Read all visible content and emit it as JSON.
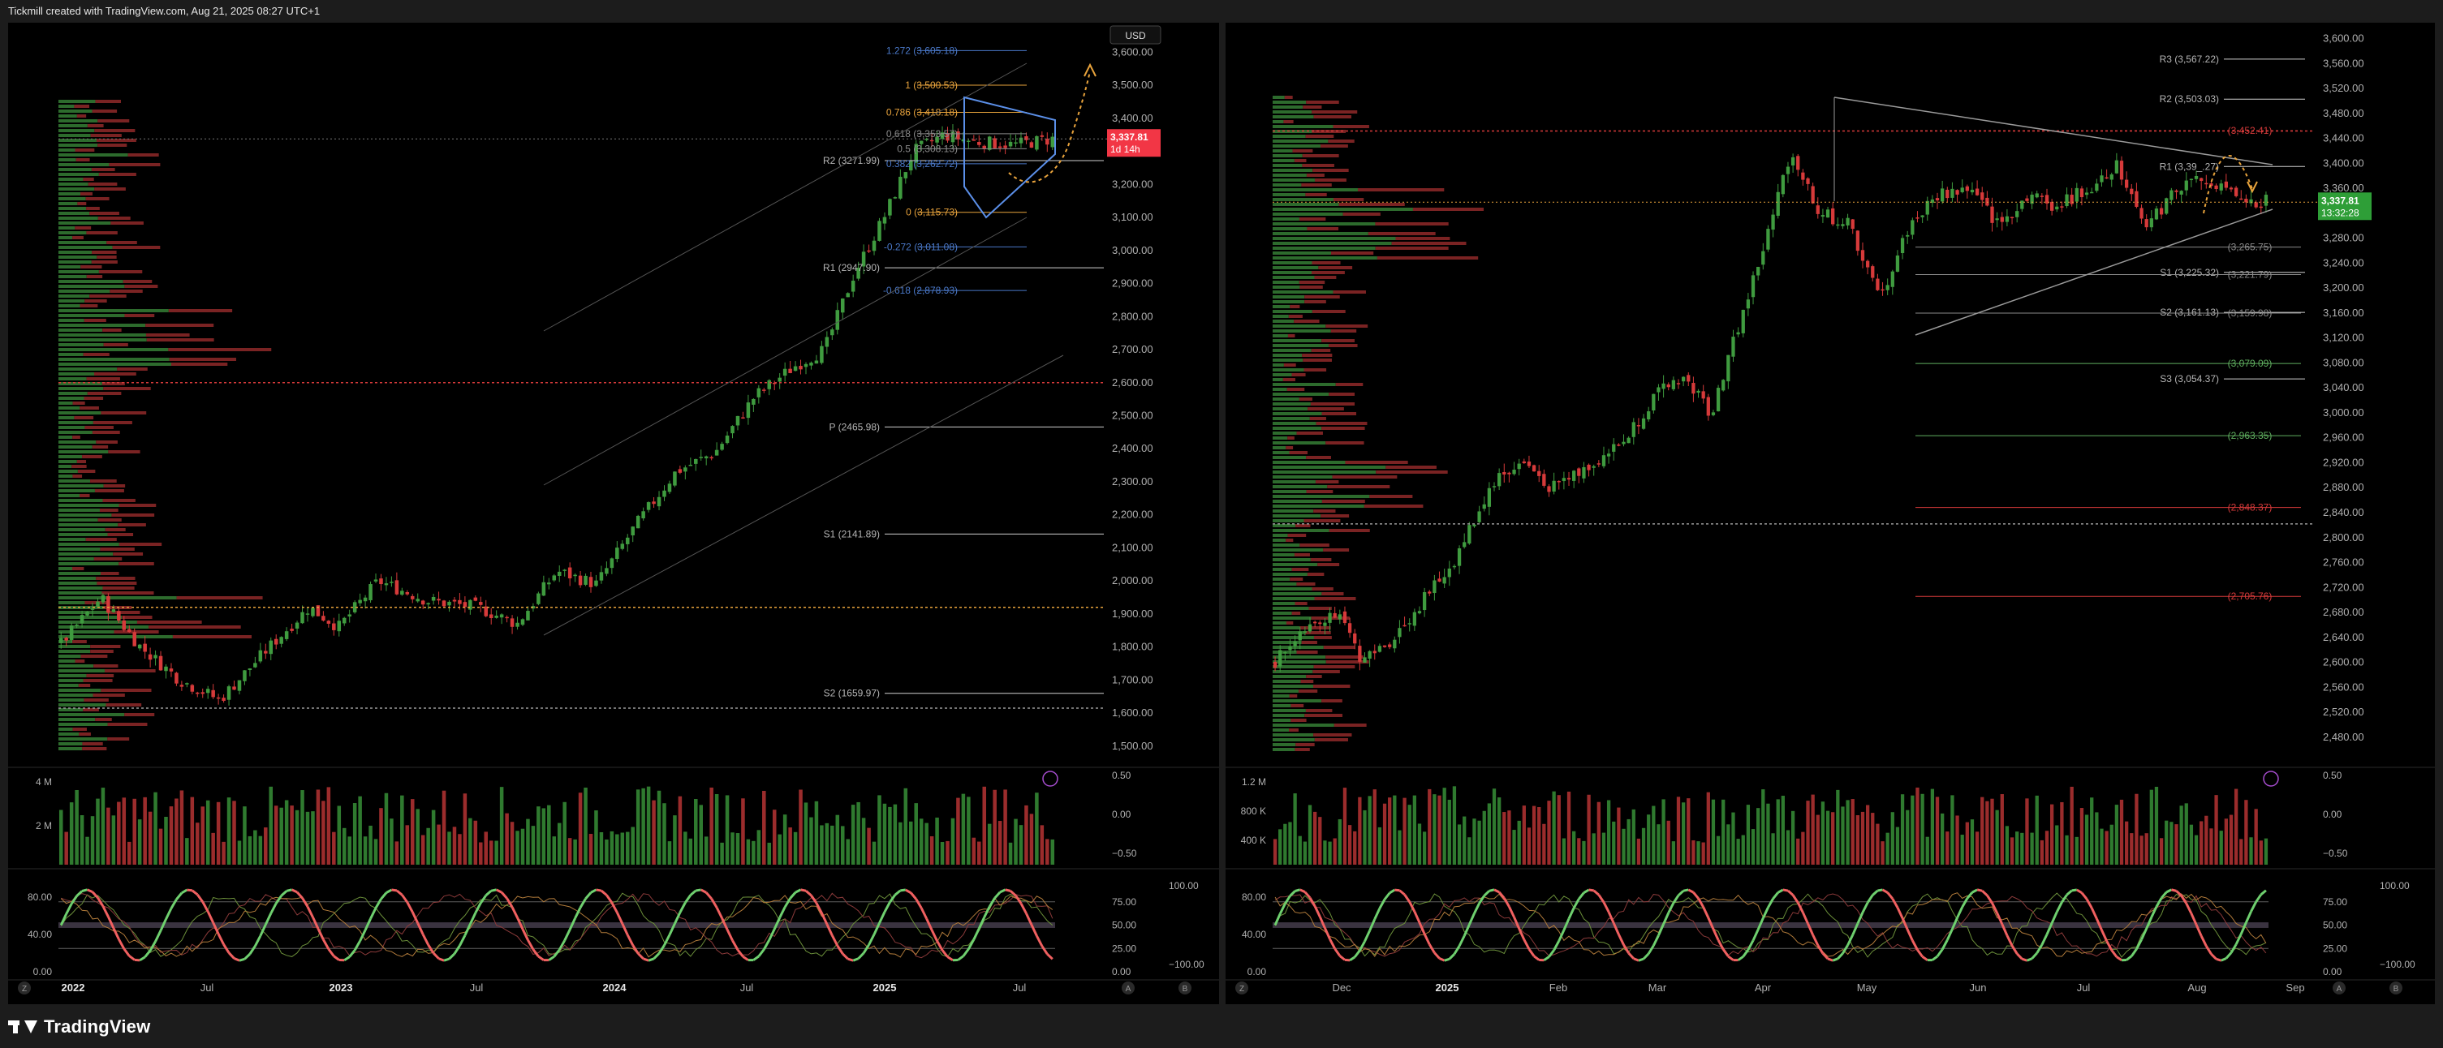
{
  "header": {
    "caption": "Tickmill created with TradingView.com, Aug 21, 2025 08:27 UTC+1"
  },
  "footer": {
    "brand": "TradingView"
  },
  "colors": {
    "bull": "#3f9b3f",
    "bear": "#d63a3a",
    "fib_blue": "#4a78c8",
    "fib_orange": "#e8a33c",
    "pivot": "#b5b5b5",
    "price_red": "#f23645",
    "price_green": "#2e9e37",
    "rsi_line": "#6fd06f",
    "rsi_red": "#f06060"
  },
  "chart_data": [
    {
      "type": "candlestick",
      "panel": "left",
      "timeframe": "weekly",
      "currency_button": "USD",
      "price_axis_ticks": [
        "3,600.00",
        "3,500.00",
        "3,400.00",
        "3,300.00",
        "3,200.00",
        "3,100.00",
        "3,000.00",
        "2,900.00",
        "2,800.00",
        "2,700.00",
        "2,600.00",
        "2,500.00",
        "2,400.00",
        "2,300.00",
        "2,200.00",
        "2,100.00",
        "2,000.00",
        "1,900.00",
        "1,800.00",
        "1,700.00",
        "1,600.00",
        "1,500.00"
      ],
      "ylim": [
        1480,
        3660
      ],
      "time_axis_labels": [
        "2022",
        "Jul",
        "2023",
        "Jul",
        "2024",
        "Jul",
        "2025",
        "Jul"
      ],
      "price_anchors": [
        {
          "t": 0.0,
          "p": 1810
        },
        {
          "t": 0.04,
          "p": 1950
        },
        {
          "t": 0.08,
          "p": 1800
        },
        {
          "t": 0.12,
          "p": 1700
        },
        {
          "t": 0.16,
          "p": 1640
        },
        {
          "t": 0.21,
          "p": 1800
        },
        {
          "t": 0.25,
          "p": 1920
        },
        {
          "t": 0.28,
          "p": 1860
        },
        {
          "t": 0.32,
          "p": 2000
        },
        {
          "t": 0.37,
          "p": 1940
        },
        {
          "t": 0.42,
          "p": 1920
        },
        {
          "t": 0.46,
          "p": 1870
        },
        {
          "t": 0.5,
          "p": 2030
        },
        {
          "t": 0.54,
          "p": 1990
        },
        {
          "t": 0.58,
          "p": 2170
        },
        {
          "t": 0.62,
          "p": 2330
        },
        {
          "t": 0.66,
          "p": 2390
        },
        {
          "t": 0.7,
          "p": 2560
        },
        {
          "t": 0.74,
          "p": 2650
        },
        {
          "t": 0.77,
          "p": 2700
        },
        {
          "t": 0.8,
          "p": 2930
        },
        {
          "t": 0.83,
          "p": 3100
        },
        {
          "t": 0.86,
          "p": 3300
        },
        {
          "t": 0.89,
          "p": 3350
        },
        {
          "t": 0.92,
          "p": 3330
        },
        {
          "t": 0.96,
          "p": 3320
        },
        {
          "t": 1.0,
          "p": 3337.81
        }
      ],
      "last_price": {
        "value": "3,337.81",
        "countdown": "1d 14h"
      },
      "fib_levels": [
        {
          "label": "1.272 (3,605.18)",
          "price": 3605.18,
          "color": "blue"
        },
        {
          "label": "1 (3,500.53)",
          "price": 3500.53,
          "color": "orange"
        },
        {
          "label": "0.786 (3,418.18)",
          "price": 3418.18,
          "color": "orange"
        },
        {
          "label": "0.618 (3,353.57)",
          "price": 3353.57,
          "color": "grey"
        },
        {
          "label": "0.5 (3,308.13)",
          "price": 3308.13,
          "color": "grey"
        },
        {
          "label": "0.382 (3,262.72)",
          "price": 3262.72,
          "color": "blue"
        },
        {
          "label": "0 (3,115.73)",
          "price": 3115.73,
          "color": "orange"
        },
        {
          "label": "-0.272 (3,011.08)",
          "price": 3011.08,
          "color": "blue"
        },
        {
          "label": "-0.618 (2,878.93)",
          "price": 2878.93,
          "color": "blue"
        }
      ],
      "pivots": [
        {
          "label": "R2 (3271.99)",
          "price": 3271.99
        },
        {
          "label": "R1 (2947.90)",
          "price": 2947.9
        },
        {
          "label": "P (2465.98)",
          "price": 2465.98
        },
        {
          "label": "S1 (2141.89)",
          "price": 2141.89
        },
        {
          "label": "S2 (1659.97)",
          "price": 1659.97
        }
      ],
      "dotted_levels": [
        {
          "price": 2600,
          "color": "red"
        },
        {
          "price": 1920,
          "color": "orange"
        },
        {
          "price": 1615,
          "color": "grey"
        }
      ],
      "volume": {
        "axis_labels": [
          "4 M",
          "2 M"
        ],
        "right_axis": [
          "0.50",
          "0.00",
          "−0.50"
        ]
      },
      "oscillator": {
        "left_axis": [
          "80.00",
          "40.00",
          "0.00"
        ],
        "right_axis_a": [
          "75.00",
          "50.00",
          "25.00",
          "0.00"
        ],
        "right_axis_b": [
          "100.00",
          "",
          "−100.00"
        ]
      },
      "footer_buttons": [
        "Z",
        "A",
        "B"
      ]
    },
    {
      "type": "candlestick",
      "panel": "right",
      "timeframe": "daily",
      "price_axis_ticks": [
        "3,600.00",
        "3,560.00",
        "3,520.00",
        "3,480.00",
        "3,440.00",
        "3,400.00",
        "3,360.00",
        "3,320.00",
        "3,280.00",
        "3,240.00",
        "3,200.00",
        "3,160.00",
        "3,120.00",
        "3,080.00",
        "3,040.00",
        "3,000.00",
        "2,960.00",
        "2,920.00",
        "2,880.00",
        "2,840.00",
        "2,800.00",
        "2,760.00",
        "2,720.00",
        "2,680.00",
        "2,640.00",
        "2,600.00",
        "2,560.00",
        "2,520.00",
        "2,480.00"
      ],
      "ylim": [
        2455,
        3610
      ],
      "time_axis_labels": [
        "Dec",
        "2025",
        "Feb",
        "Mar",
        "Apr",
        "May",
        "Jun",
        "Jul",
        "Aug",
        "Sep"
      ],
      "price_anchors": [
        {
          "t": 0.0,
          "p": 2600
        },
        {
          "t": 0.03,
          "p": 2660
        },
        {
          "t": 0.06,
          "p": 2680
        },
        {
          "t": 0.09,
          "p": 2600
        },
        {
          "t": 0.12,
          "p": 2640
        },
        {
          "t": 0.15,
          "p": 2700
        },
        {
          "t": 0.18,
          "p": 2760
        },
        {
          "t": 0.22,
          "p": 2890
        },
        {
          "t": 0.25,
          "p": 2920
        },
        {
          "t": 0.28,
          "p": 2880
        },
        {
          "t": 0.32,
          "p": 2920
        },
        {
          "t": 0.35,
          "p": 2950
        },
        {
          "t": 0.38,
          "p": 3020
        },
        {
          "t": 0.41,
          "p": 3060
        },
        {
          "t": 0.44,
          "p": 3000
        },
        {
          "t": 0.47,
          "p": 3150
        },
        {
          "t": 0.5,
          "p": 3300
        },
        {
          "t": 0.52,
          "p": 3420
        },
        {
          "t": 0.55,
          "p": 3320
        },
        {
          "t": 0.58,
          "p": 3300
        },
        {
          "t": 0.61,
          "p": 3180
        },
        {
          "t": 0.64,
          "p": 3300
        },
        {
          "t": 0.67,
          "p": 3350
        },
        {
          "t": 0.7,
          "p": 3360
        },
        {
          "t": 0.73,
          "p": 3300
        },
        {
          "t": 0.76,
          "p": 3350
        },
        {
          "t": 0.79,
          "p": 3330
        },
        {
          "t": 0.82,
          "p": 3360
        },
        {
          "t": 0.85,
          "p": 3400
        },
        {
          "t": 0.88,
          "p": 3300
        },
        {
          "t": 0.91,
          "p": 3360
        },
        {
          "t": 0.94,
          "p": 3380
        },
        {
          "t": 0.97,
          "p": 3340
        },
        {
          "t": 1.0,
          "p": 3337.81
        }
      ],
      "last_price": {
        "value": "3,337.81",
        "countdown": "13:32:28"
      },
      "pivots": [
        {
          "label": "R3 (3,567.22)",
          "price": 3567.22
        },
        {
          "label": "R2 (3,503.03)",
          "price": 3503.03
        },
        {
          "label": "R1 (3,39_.27)",
          "price": 3395
        },
        {
          "label": "S1 (3,225.32)",
          "price": 3225.32
        },
        {
          "label": "S2 (3,161.13)",
          "price": 3161.13
        },
        {
          "label": "S3 (3,054.37)",
          "price": 3054.37
        }
      ],
      "right_levels": [
        {
          "label": "(3,452.41)",
          "price": 3452.41,
          "color": "red"
        },
        {
          "label": "(3,265.75)",
          "price": 3265.75,
          "color": "grey"
        },
        {
          "label": "(3,221.79)",
          "price": 3221.79,
          "color": "grey"
        },
        {
          "label": "(3,159.98)",
          "price": 3159.98,
          "color": "grey"
        },
        {
          "label": "(3,079.09)",
          "price": 3079.09,
          "color": "green"
        },
        {
          "label": "(2,963.35)",
          "price": 2963.35,
          "color": "green"
        },
        {
          "label": "(2,848.37)",
          "price": 2848.37,
          "color": "red"
        },
        {
          "label": "(2,705.76)",
          "price": 2705.76,
          "color": "red"
        }
      ],
      "dotted_levels": [
        {
          "price": 3452,
          "color": "red"
        },
        {
          "price": 2822,
          "color": "grey"
        }
      ],
      "volume": {
        "axis_labels": [
          "1.2 M",
          "800 K",
          "400 K"
        ],
        "right_axis": [
          "0.50",
          "0.00",
          "−0.50"
        ]
      },
      "oscillator": {
        "left_axis": [
          "80.00",
          "40.00",
          "0.00"
        ],
        "right_axis_a": [
          "75.00",
          "50.00",
          "25.00",
          "0.00"
        ],
        "right_axis_b": [
          "100.00",
          "",
          "−100.00"
        ]
      },
      "footer_buttons": [
        "Z",
        "A",
        "B"
      ]
    }
  ]
}
